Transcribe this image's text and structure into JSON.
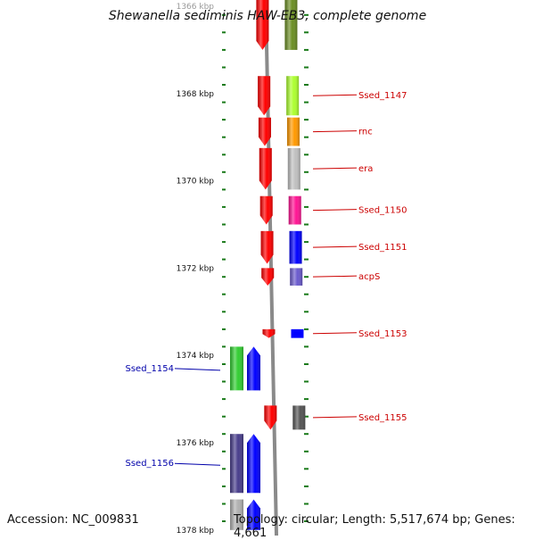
{
  "title": "Shewanella sediminis HAW-EB3, complete genome",
  "footer": {
    "accession": "Accession: NC_009831",
    "summary": "Topology: circular; Length: 5,517,674 bp; Genes: 4,661"
  },
  "colors": {
    "forward_label": "#cc0000",
    "reverse_label": "#0000aa",
    "ticks": "#1a7a1a",
    "backbone": "#8a8a8a"
  },
  "scale": {
    "unit": "kbp",
    "labels": [
      "1366 kbp",
      "1368 kbp",
      "1370 kbp",
      "1372 kbp",
      "1374 kbp",
      "1376 kbp",
      "1378 kbp"
    ]
  },
  "genes": [
    {
      "label": "",
      "strand": "+",
      "start_kbp": 1365.6,
      "end_kbp": 1367.0,
      "color": "#6b8e23"
    },
    {
      "label": "Ssed_1147",
      "strand": "+",
      "start_kbp": 1367.6,
      "end_kbp": 1368.5,
      "color": "#adff2f"
    },
    {
      "label": "rnc",
      "strand": "+",
      "start_kbp": 1368.55,
      "end_kbp": 1369.2,
      "color": "#ff9900"
    },
    {
      "label": "era",
      "strand": "+",
      "start_kbp": 1369.25,
      "end_kbp": 1370.2,
      "color": "#c0c0c0"
    },
    {
      "label": "Ssed_1150",
      "strand": "+",
      "start_kbp": 1370.35,
      "end_kbp": 1371.0,
      "color": "#ff1493"
    },
    {
      "label": "Ssed_1151",
      "strand": "+",
      "start_kbp": 1371.15,
      "end_kbp": 1371.9,
      "color": "#0000ff"
    },
    {
      "label": "acpS",
      "strand": "+",
      "start_kbp": 1372.0,
      "end_kbp": 1372.4,
      "color": "#6a5acd"
    },
    {
      "label": "Ssed_1153",
      "strand": "+",
      "start_kbp": 1373.4,
      "end_kbp": 1373.6,
      "color": "#0000ff"
    },
    {
      "label": "Ssed_1154",
      "strand": "-",
      "start_kbp": 1373.8,
      "end_kbp": 1374.8,
      "color": "#32cd32"
    },
    {
      "label": "Ssed_1155",
      "strand": "+",
      "start_kbp": 1375.15,
      "end_kbp": 1375.7,
      "color": "#555555"
    },
    {
      "label": "Ssed_1156",
      "strand": "-",
      "start_kbp": 1375.8,
      "end_kbp": 1377.15,
      "color": "#483d8b"
    },
    {
      "label": "",
      "strand": "-",
      "start_kbp": 1377.3,
      "end_kbp": 1378.0,
      "color": "#b0b0b0"
    }
  ]
}
